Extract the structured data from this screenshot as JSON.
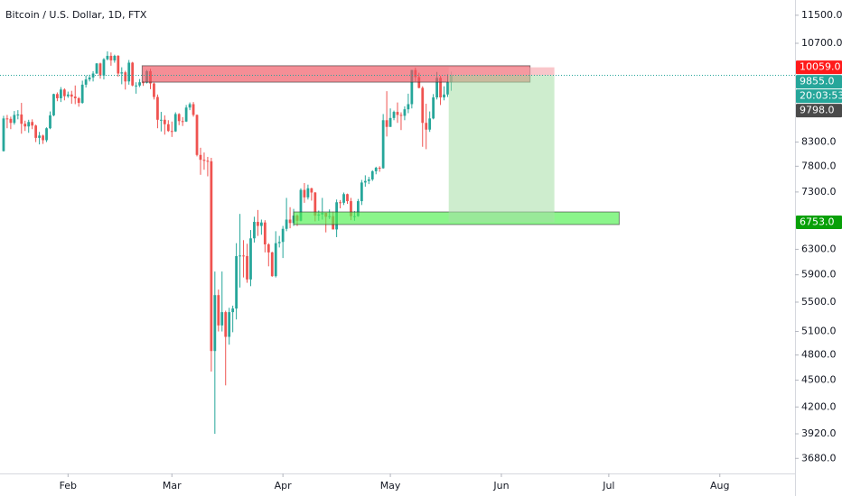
{
  "chart_data": {
    "type": "candlestick",
    "title": "Bitcoin / U.S. Dollar, 1D, FTX",
    "up_color": "#26a69a",
    "down_color": "#ef5350",
    "log_scale": true,
    "xlim": [
      12,
      234
    ],
    "ylim": [
      3540,
      11960
    ],
    "xticks": [
      {
        "value": 31,
        "label": "Feb"
      },
      {
        "value": 60,
        "label": "Mar"
      },
      {
        "value": 91,
        "label": "Apr"
      },
      {
        "value": 121,
        "label": "May"
      },
      {
        "value": 152,
        "label": "Jun"
      },
      {
        "value": 182,
        "label": "Jul"
      },
      {
        "value": 213,
        "label": "Aug"
      }
    ],
    "yticks": [
      {
        "value": 11500,
        "label": "11500.0"
      },
      {
        "value": 10700,
        "label": "10700.0"
      },
      {
        "value": 8300,
        "label": "8300.0"
      },
      {
        "value": 7800,
        "label": "7800.0"
      },
      {
        "value": 7300,
        "label": "7300.0"
      },
      {
        "value": 6300,
        "label": "6300.0"
      },
      {
        "value": 5900,
        "label": "5900.0"
      },
      {
        "value": 5500,
        "label": "5500.0"
      },
      {
        "value": 5100,
        "label": "5100.0"
      },
      {
        "value": 4800,
        "label": "4800.0"
      },
      {
        "value": 4500,
        "label": "4500.0"
      },
      {
        "value": 4200,
        "label": "4200.0"
      },
      {
        "value": 3920,
        "label": "3920.0"
      },
      {
        "value": 3680,
        "label": "3680.0"
      }
    ],
    "x": [
      13,
      14,
      15,
      16,
      17,
      18,
      19,
      20,
      21,
      22,
      23,
      24,
      25,
      26,
      27,
      28,
      29,
      30,
      31,
      32,
      33,
      34,
      35,
      36,
      37,
      38,
      39,
      40,
      41,
      42,
      43,
      44,
      45,
      46,
      47,
      48,
      49,
      50,
      51,
      52,
      53,
      54,
      55,
      56,
      57,
      58,
      59,
      60,
      61,
      62,
      63,
      64,
      65,
      66,
      67,
      68,
      69,
      70,
      71,
      72,
      73,
      74,
      75,
      76,
      77,
      78,
      79,
      80,
      81,
      82,
      83,
      84,
      85,
      86,
      87,
      88,
      89,
      90,
      91,
      92,
      93,
      94,
      95,
      96,
      97,
      98,
      99,
      100,
      101,
      102,
      103,
      104,
      105,
      106,
      107,
      108,
      109,
      110,
      111,
      112,
      113,
      114,
      115,
      116,
      117,
      118,
      119,
      120,
      121,
      122,
      123,
      124,
      125,
      126,
      127,
      128,
      129,
      130,
      131,
      132,
      133,
      134,
      135,
      136,
      137,
      138
    ],
    "candles": [
      [
        8110,
        8880,
        8100,
        8820
      ],
      [
        8820,
        8900,
        8600,
        8810
      ],
      [
        8810,
        8860,
        8580,
        8720
      ],
      [
        8720,
        8990,
        8680,
        8900
      ],
      [
        8900,
        9010,
        8800,
        8910
      ],
      [
        8910,
        9180,
        8480,
        8700
      ],
      [
        8700,
        8770,
        8540,
        8640
      ],
      [
        8640,
        8790,
        8500,
        8740
      ],
      [
        8740,
        8800,
        8580,
        8660
      ],
      [
        8660,
        8680,
        8300,
        8390
      ],
      [
        8390,
        8520,
        8250,
        8440
      ],
      [
        8440,
        8460,
        8260,
        8340
      ],
      [
        8340,
        8620,
        8300,
        8600
      ],
      [
        8600,
        8980,
        8580,
        8890
      ],
      [
        8890,
        9400,
        8870,
        9390
      ],
      [
        9390,
        9430,
        9220,
        9290
      ],
      [
        9290,
        9560,
        9200,
        9500
      ],
      [
        9500,
        9530,
        9240,
        9340
      ],
      [
        9340,
        9450,
        9300,
        9380
      ],
      [
        9380,
        9470,
        9160,
        9330
      ],
      [
        9330,
        9600,
        9150,
        9290
      ],
      [
        9290,
        9320,
        9090,
        9180
      ],
      [
        9180,
        9720,
        9160,
        9620
      ],
      [
        9620,
        9850,
        9550,
        9750
      ],
      [
        9750,
        9870,
        9700,
        9800
      ],
      [
        9800,
        9960,
        9700,
        9900
      ],
      [
        9900,
        10170,
        9890,
        10160
      ],
      [
        10160,
        10180,
        9770,
        9850
      ],
      [
        9850,
        10300,
        9750,
        10270
      ],
      [
        10270,
        10480,
        10240,
        10360
      ],
      [
        10360,
        10450,
        10100,
        10240
      ],
      [
        10240,
        10390,
        10180,
        10360
      ],
      [
        10360,
        10380,
        9820,
        9900
      ],
      [
        9900,
        10060,
        9630,
        9930
      ],
      [
        9930,
        9970,
        9500,
        9700
      ],
      [
        9700,
        10250,
        9620,
        10180
      ],
      [
        10180,
        10200,
        9580,
        9600
      ],
      [
        9600,
        9680,
        9400,
        9600
      ],
      [
        9600,
        9760,
        9560,
        9680
      ],
      [
        9680,
        9710,
        9590,
        9670
      ],
      [
        9670,
        9990,
        9650,
        9960
      ],
      [
        9960,
        10020,
        9510,
        9650
      ],
      [
        9650,
        9670,
        9260,
        9320
      ],
      [
        9320,
        9380,
        8600,
        8790
      ],
      [
        8790,
        8970,
        8530,
        8790
      ],
      [
        8790,
        8890,
        8460,
        8690
      ],
      [
        8690,
        8780,
        8520,
        8540
      ],
      [
        8540,
        8750,
        8410,
        8530
      ],
      [
        8530,
        8960,
        8520,
        8920
      ],
      [
        8920,
        8940,
        8670,
        8760
      ],
      [
        8760,
        8850,
        8650,
        8750
      ],
      [
        8750,
        9130,
        8740,
        9070
      ],
      [
        9070,
        9190,
        9010,
        9150
      ],
      [
        9150,
        9200,
        8860,
        8900
      ],
      [
        8900,
        8910,
        8000,
        8030
      ],
      [
        8030,
        8180,
        7630,
        7930
      ],
      [
        7930,
        8080,
        7730,
        7910
      ],
      [
        7910,
        7990,
        7600,
        7900
      ],
      [
        7900,
        7970,
        4600,
        4850
      ],
      [
        4850,
        5950,
        3920,
        5600
      ],
      [
        5600,
        5680,
        5100,
        5180
      ],
      [
        5180,
        5950,
        5100,
        5360
      ],
      [
        5360,
        5380,
        4440,
        5030
      ],
      [
        5030,
        5420,
        4930,
        5360
      ],
      [
        5360,
        5450,
        5090,
        5410
      ],
      [
        5410,
        6400,
        5260,
        6190
      ],
      [
        6190,
        6900,
        5710,
        6200
      ],
      [
        6200,
        6450,
        5860,
        6190
      ],
      [
        6190,
        6390,
        5780,
        5830
      ],
      [
        5830,
        6620,
        5730,
        6480
      ],
      [
        6480,
        6850,
        6410,
        6760
      ],
      [
        6760,
        6970,
        6520,
        6690
      ],
      [
        6690,
        6800,
        6540,
        6750
      ],
      [
        6750,
        6790,
        6250,
        6380
      ],
      [
        6380,
        6400,
        6030,
        6250
      ],
      [
        6250,
        6260,
        5870,
        5880
      ],
      [
        5880,
        6600,
        5860,
        6400
      ],
      [
        6400,
        6520,
        6330,
        6420
      ],
      [
        6420,
        6690,
        6160,
        6640
      ],
      [
        6640,
        7190,
        6600,
        6800
      ],
      [
        6800,
        7020,
        6650,
        6740
      ],
      [
        6740,
        6990,
        6690,
        6870
      ],
      [
        6870,
        6890,
        6690,
        6780
      ],
      [
        6780,
        7370,
        6770,
        7340
      ],
      [
        7340,
        7470,
        7100,
        7200
      ],
      [
        7200,
        7440,
        7160,
        7370
      ],
      [
        7370,
        7380,
        7140,
        7290
      ],
      [
        7290,
        7300,
        6770,
        6870
      ],
      [
        6870,
        6960,
        6780,
        6890
      ],
      [
        6890,
        7190,
        6800,
        6920
      ],
      [
        6920,
        6920,
        6580,
        6850
      ],
      [
        6850,
        6980,
        6810,
        6860
      ],
      [
        6860,
        6940,
        6630,
        6630
      ],
      [
        6630,
        7160,
        6500,
        7110
      ],
      [
        7110,
        7150,
        7000,
        7100
      ],
      [
        7100,
        7290,
        7060,
        7260
      ],
      [
        7260,
        7270,
        7080,
        7130
      ],
      [
        7130,
        7190,
        6790,
        6860
      ],
      [
        6860,
        6950,
        6780,
        6860
      ],
      [
        6860,
        7170,
        6850,
        7130
      ],
      [
        7130,
        7530,
        7060,
        7480
      ],
      [
        7480,
        7620,
        7400,
        7510
      ],
      [
        7510,
        7590,
        7450,
        7540
      ],
      [
        7540,
        7720,
        7510,
        7700
      ],
      [
        7700,
        7790,
        7640,
        7770
      ],
      [
        7770,
        7800,
        7690,
        7760
      ],
      [
        7760,
        8920,
        7750,
        8780
      ],
      [
        8780,
        9460,
        8420,
        8630
      ],
      [
        8630,
        9050,
        8630,
        8830
      ],
      [
        8830,
        9000,
        8780,
        8970
      ],
      [
        8970,
        9190,
        8720,
        8900
      ],
      [
        8900,
        8960,
        8560,
        8880
      ],
      [
        8880,
        9100,
        8780,
        9030
      ],
      [
        9030,
        9400,
        8940,
        9150
      ],
      [
        9150,
        9990,
        9050,
        9990
      ],
      [
        9990,
        10050,
        9700,
        9810
      ],
      [
        9810,
        9920,
        9530,
        9540
      ],
      [
        9540,
        9580,
        8200,
        8720
      ],
      [
        8720,
        9160,
        8150,
        8570
      ],
      [
        8570,
        8980,
        8520,
        8820
      ],
      [
        8820,
        9390,
        8800,
        9310
      ],
      [
        9310,
        9940,
        9260,
        9790
      ],
      [
        9790,
        9840,
        9130,
        9310
      ],
      [
        9310,
        9580,
        9240,
        9380
      ],
      [
        9380,
        9880,
        9320,
        9680
      ],
      [
        9680,
        9950,
        9470,
        9855
      ]
    ],
    "zones": [
      {
        "x": [
          51.7,
          160
        ],
        "y": [
          9683,
          10100
        ],
        "color": "#f0525e"
      },
      {
        "x": [
          94,
          184.9
        ],
        "y": [
          6714,
          6935
        ],
        "color": "#4df04d"
      }
    ],
    "position": {
      "x": [
        137.3,
        166.8
      ],
      "entry": 9855,
      "stop": 10059,
      "target": 6753,
      "stop_color": "#f5a0a6",
      "target_color": "#a6dea6"
    },
    "price_labels": [
      {
        "value": 10059,
        "label": "10059.0",
        "color": "#ff1a1a"
      },
      {
        "value": 9855,
        "label": "9855.0",
        "color": "#26a69a",
        "line": "dotted"
      },
      {
        "label": "20:03:53",
        "color": "#26a69a"
      },
      {
        "value": 9798,
        "label": "9798.0",
        "color": "#4a4a4a"
      },
      {
        "value": 6753,
        "label": "6753.0",
        "color": "#08a008"
      }
    ]
  }
}
